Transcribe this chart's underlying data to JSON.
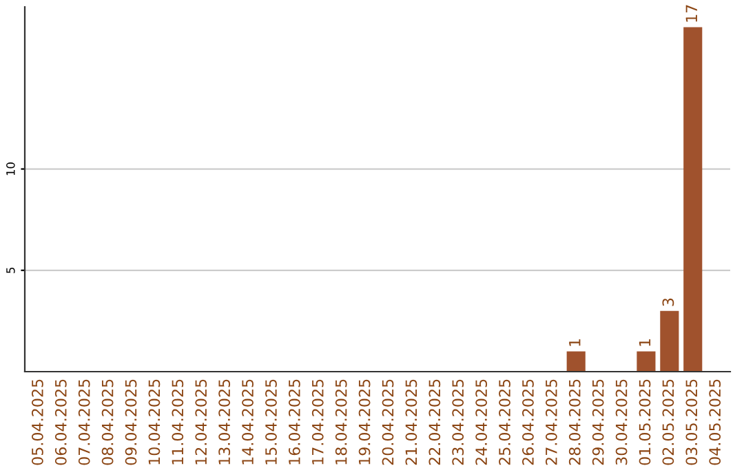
{
  "chart_data": {
    "type": "bar",
    "categories": [
      "05.04.2025",
      "06.04.2025",
      "07.04.2025",
      "08.04.2025",
      "09.04.2025",
      "10.04.2025",
      "11.04.2025",
      "12.04.2025",
      "13.04.2025",
      "14.04.2025",
      "15.04.2025",
      "16.04.2025",
      "17.04.2025",
      "18.04.2025",
      "19.04.2025",
      "20.04.2025",
      "21.04.2025",
      "22.04.2025",
      "23.04.2025",
      "24.04.2025",
      "25.04.2025",
      "26.04.2025",
      "27.04.2025",
      "28.04.2025",
      "29.04.2025",
      "30.04.2025",
      "01.05.2025",
      "02.05.2025",
      "03.05.2025",
      "04.05.2025"
    ],
    "values": [
      0,
      0,
      0,
      0,
      0,
      0,
      0,
      0,
      0,
      0,
      0,
      0,
      0,
      0,
      0,
      0,
      0,
      0,
      0,
      0,
      0,
      0,
      0,
      1,
      0,
      0,
      1,
      3,
      17,
      0
    ],
    "value_labels": [
      null,
      null,
      null,
      null,
      null,
      null,
      null,
      null,
      null,
      null,
      null,
      null,
      null,
      null,
      null,
      null,
      null,
      null,
      null,
      null,
      null,
      null,
      null,
      "1",
      null,
      null,
      "1",
      "3",
      "17",
      null
    ],
    "color": "#a0522d",
    "ylim": [
      0,
      18
    ],
    "yticks": [
      5,
      10
    ],
    "grid": "y",
    "legend": false
  }
}
